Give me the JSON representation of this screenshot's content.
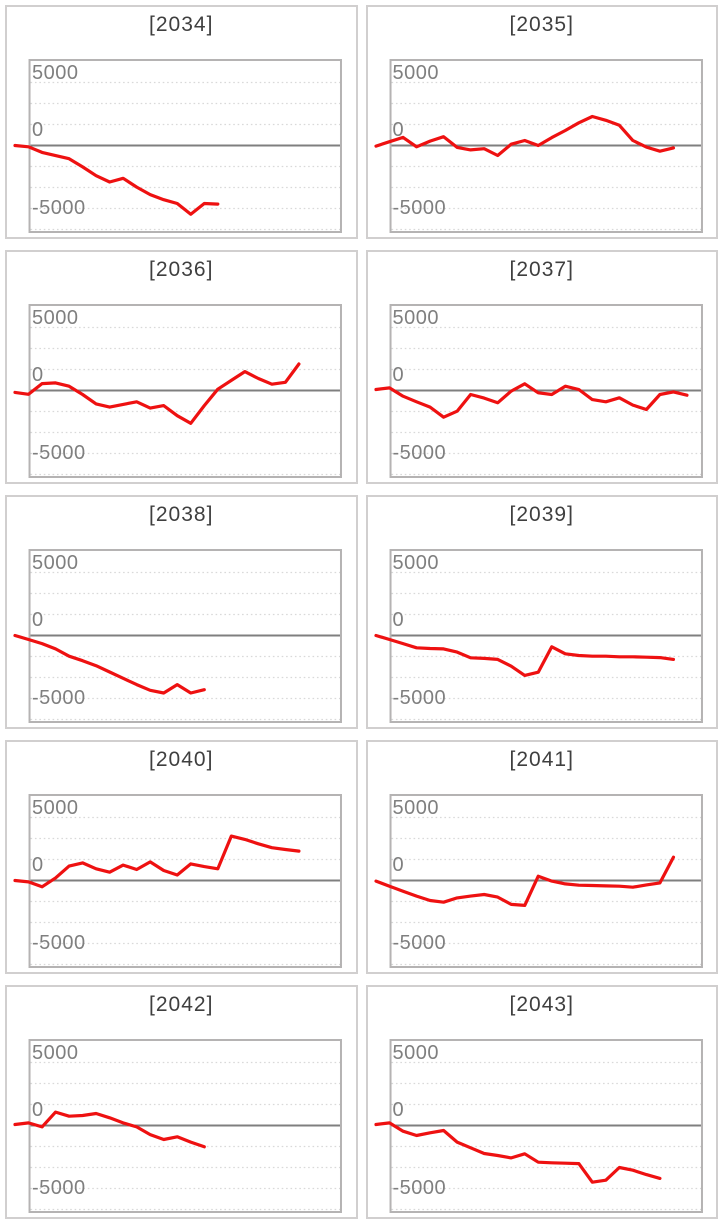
{
  "axis": {
    "tick_labels": [
      "5000",
      "0",
      "-5000"
    ],
    "yticks": [
      5000,
      0,
      -5000
    ],
    "ylim": [
      -6700,
      6700
    ],
    "grid": "dotted-minor-lines, solid zero line"
  },
  "colors": {
    "series": "#ee1111",
    "zero_line": "#7f7f7f",
    "gridline": "#d9d9d9",
    "plot_border": "#b5b3b3",
    "panel_border": "#d1cfcf",
    "title_text": "#3f3f3f",
    "tick_text": "#7f7f7f",
    "background": "#ffffff"
  },
  "chart_data": [
    {
      "type": "line",
      "title": "[2034]",
      "ylim": [
        -6700,
        6700
      ],
      "yticks": [
        5000,
        0,
        -5000
      ],
      "color": "#ee1111",
      "values": [
        0,
        -100,
        -550,
        -800,
        -1050,
        -1700,
        -2400,
        -2900,
        -2600,
        -3300,
        -3900,
        -4300,
        -4600,
        -5450,
        -4600,
        -4650
      ]
    },
    {
      "type": "line",
      "title": "[2035]",
      "ylim": [
        -6700,
        6700
      ],
      "yticks": [
        5000,
        0,
        -5000
      ],
      "color": "#ee1111",
      "values": [
        -50,
        300,
        640,
        -100,
        350,
        700,
        -150,
        -350,
        -250,
        -790,
        100,
        400,
        0,
        630,
        1190,
        1800,
        2300,
        2000,
        1600,
        400,
        -130,
        -450,
        -190
      ]
    },
    {
      "type": "line",
      "title": "[2036]",
      "ylim": [
        -6700,
        6700
      ],
      "yticks": [
        5000,
        0,
        -5000
      ],
      "color": "#ee1111",
      "values": [
        -150,
        -300,
        550,
        600,
        340,
        -320,
        -1060,
        -1320,
        -1100,
        -900,
        -1400,
        -1200,
        -2000,
        -2600,
        -1200,
        100,
        800,
        1500,
        950,
        500,
        650,
        2100
      ]
    },
    {
      "type": "line",
      "title": "[2037]",
      "ylim": [
        -6700,
        6700
      ],
      "yticks": [
        5000,
        0,
        -5000
      ],
      "color": "#ee1111",
      "values": [
        80,
        210,
        -450,
        -900,
        -1320,
        -2120,
        -1640,
        -320,
        -600,
        -980,
        -50,
        530,
        -180,
        -320,
        340,
        80,
        -720,
        -900,
        -580,
        -1160,
        -1510,
        -320,
        -110,
        -370
      ]
    },
    {
      "type": "line",
      "title": "[2038]",
      "ylim": [
        -6700,
        6700
      ],
      "yticks": [
        5000,
        0,
        -5000
      ],
      "color": "#ee1111",
      "values": [
        0,
        -320,
        -640,
        -1060,
        -1640,
        -2000,
        -2400,
        -2900,
        -3400,
        -3900,
        -4350,
        -4560,
        -3900,
        -4560,
        -4300
      ]
    },
    {
      "type": "line",
      "title": "[2039]",
      "ylim": [
        -6700,
        6700
      ],
      "yticks": [
        5000,
        0,
        -5000
      ],
      "color": "#ee1111",
      "values": [
        0,
        -320,
        -640,
        -980,
        -1030,
        -1060,
        -1320,
        -1770,
        -1820,
        -1900,
        -2440,
        -3170,
        -2910,
        -900,
        -1450,
        -1590,
        -1640,
        -1640,
        -1690,
        -1690,
        -1720,
        -1750,
        -1900
      ]
    },
    {
      "type": "line",
      "title": "[2040]",
      "ylim": [
        -6700,
        6700
      ],
      "yticks": [
        5000,
        0,
        -5000
      ],
      "color": "#ee1111",
      "values": [
        0,
        -110,
        -500,
        210,
        1140,
        1400,
        930,
        660,
        1220,
        870,
        1480,
        790,
        440,
        1320,
        1100,
        930,
        3520,
        3260,
        2910,
        2600,
        2460,
        2330
      ]
    },
    {
      "type": "line",
      "title": "[2041]",
      "ylim": [
        -6700,
        6700
      ],
      "yticks": [
        5000,
        0,
        -5000
      ],
      "color": "#ee1111",
      "values": [
        -50,
        -450,
        -850,
        -1240,
        -1590,
        -1720,
        -1380,
        -1240,
        -1110,
        -1320,
        -1900,
        -1980,
        340,
        -50,
        -270,
        -370,
        -400,
        -430,
        -450,
        -530,
        -350,
        -190,
        1850
      ]
    },
    {
      "type": "line",
      "title": "[2042]",
      "ylim": [
        -6700,
        6700
      ],
      "yticks": [
        5000,
        0,
        -5000
      ],
      "color": "#ee1111",
      "values": [
        80,
        210,
        -110,
        1060,
        740,
        790,
        950,
        610,
        210,
        -110,
        -720,
        -1110,
        -900,
        -1320,
        -1690
      ]
    },
    {
      "type": "line",
      "title": "[2043]",
      "ylim": [
        -6700,
        6700
      ],
      "yticks": [
        5000,
        0,
        -5000
      ],
      "color": "#ee1111",
      "values": [
        80,
        210,
        -450,
        -790,
        -580,
        -400,
        -1320,
        -1770,
        -2220,
        -2380,
        -2570,
        -2250,
        -2910,
        -2960,
        -2990,
        -3020,
        -4500,
        -4340,
        -3330,
        -3550,
        -3900,
        -4200
      ]
    }
  ]
}
